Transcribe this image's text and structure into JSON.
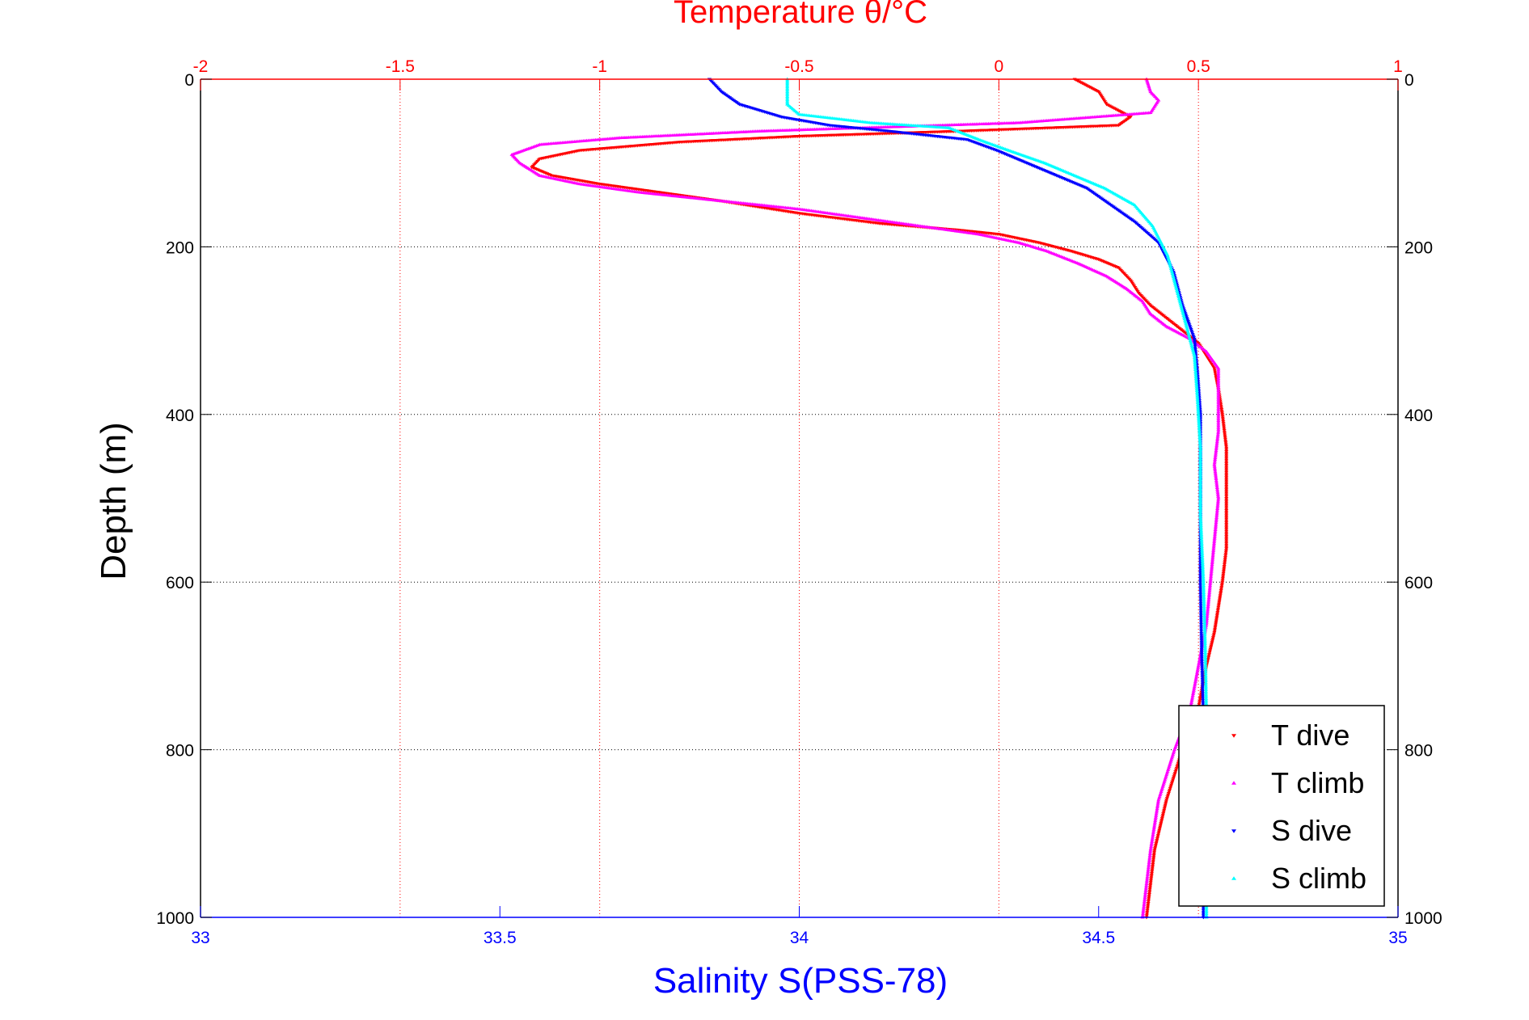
{
  "chart_data": {
    "type": "scatter",
    "title": "Temperature θ/°C",
    "xlabel": "Salinity S(PSS-78)",
    "ylabel": "Depth (m)",
    "x_salinity": {
      "lim": [
        33,
        35
      ],
      "ticks": [
        "33",
        "33.5",
        "34",
        "34.5",
        "35"
      ],
      "values": [
        33,
        33.5,
        34,
        34.5,
        35
      ]
    },
    "x_temperature": {
      "lim": [
        -2,
        1
      ],
      "ticks": [
        "-2",
        "-1.5",
        "-1",
        "-0.5",
        "0",
        "0.5",
        "1"
      ],
      "values": [
        -2,
        -1.5,
        -1,
        -0.5,
        0,
        0.5,
        1
      ]
    },
    "y_depth": {
      "lim": [
        0,
        1000
      ],
      "reversed": true,
      "ticks": [
        "0",
        "200",
        "400",
        "600",
        "800",
        "1000"
      ],
      "values": [
        0,
        200,
        400,
        600,
        800,
        1000
      ]
    },
    "grid": true,
    "legend_placement": "bottom-right",
    "colors": {
      "temperature_axis": "#ff0000",
      "salinity_axis": "#0000ff",
      "t_dive": "#ff0000",
      "t_climb": "#ff00ff",
      "s_dive": "#0000ff",
      "s_climb": "#00ffff"
    },
    "series": [
      {
        "name": "T dive",
        "axis": "temperature",
        "marker": "down-triangle",
        "points": [
          [
            0.19,
            0
          ],
          [
            0.25,
            15
          ],
          [
            0.27,
            30
          ],
          [
            0.33,
            45
          ],
          [
            0.3,
            55
          ],
          [
            -0.1,
            62
          ],
          [
            -0.5,
            68
          ],
          [
            -0.8,
            75
          ],
          [
            -1.05,
            85
          ],
          [
            -1.15,
            95
          ],
          [
            -1.17,
            105
          ],
          [
            -1.12,
            115
          ],
          [
            -1.0,
            125
          ],
          [
            -0.85,
            135
          ],
          [
            -0.7,
            145
          ],
          [
            -0.5,
            160
          ],
          [
            -0.3,
            172
          ],
          [
            -0.1,
            180
          ],
          [
            0.0,
            185
          ],
          [
            0.1,
            195
          ],
          [
            0.18,
            205
          ],
          [
            0.25,
            215
          ],
          [
            0.3,
            225
          ],
          [
            0.33,
            240
          ],
          [
            0.35,
            255
          ],
          [
            0.38,
            270
          ],
          [
            0.42,
            285
          ],
          [
            0.46,
            300
          ],
          [
            0.5,
            315
          ],
          [
            0.52,
            330
          ],
          [
            0.54,
            345
          ],
          [
            0.55,
            370
          ],
          [
            0.56,
            400
          ],
          [
            0.57,
            440
          ],
          [
            0.57,
            500
          ],
          [
            0.57,
            560
          ],
          [
            0.56,
            600
          ],
          [
            0.55,
            630
          ],
          [
            0.54,
            660
          ],
          [
            0.52,
            700
          ],
          [
            0.5,
            750
          ],
          [
            0.46,
            800
          ],
          [
            0.42,
            860
          ],
          [
            0.39,
            920
          ],
          [
            0.37,
            1000
          ]
        ]
      },
      {
        "name": "T climb",
        "axis": "temperature",
        "marker": "up-triangle",
        "points": [
          [
            0.37,
            0
          ],
          [
            0.38,
            15
          ],
          [
            0.4,
            25
          ],
          [
            0.38,
            40
          ],
          [
            0.05,
            52
          ],
          [
            -0.6,
            62
          ],
          [
            -0.95,
            70
          ],
          [
            -1.15,
            78
          ],
          [
            -1.22,
            90
          ],
          [
            -1.2,
            100
          ],
          [
            -1.15,
            115
          ],
          [
            -1.05,
            125
          ],
          [
            -0.9,
            135
          ],
          [
            -0.7,
            145
          ],
          [
            -0.5,
            155
          ],
          [
            -0.35,
            165
          ],
          [
            -0.2,
            175
          ],
          [
            -0.05,
            185
          ],
          [
            0.05,
            195
          ],
          [
            0.12,
            205
          ],
          [
            0.2,
            220
          ],
          [
            0.27,
            235
          ],
          [
            0.32,
            250
          ],
          [
            0.36,
            265
          ],
          [
            0.38,
            280
          ],
          [
            0.42,
            295
          ],
          [
            0.48,
            310
          ],
          [
            0.52,
            325
          ],
          [
            0.55,
            345
          ],
          [
            0.55,
            380
          ],
          [
            0.55,
            420
          ],
          [
            0.54,
            460
          ],
          [
            0.55,
            500
          ],
          [
            0.54,
            550
          ],
          [
            0.53,
            600
          ],
          [
            0.52,
            650
          ],
          [
            0.5,
            700
          ],
          [
            0.48,
            750
          ],
          [
            0.44,
            800
          ],
          [
            0.4,
            860
          ],
          [
            0.38,
            920
          ],
          [
            0.36,
            1000
          ]
        ]
      },
      {
        "name": "S dive",
        "axis": "salinity",
        "marker": "down-triangle",
        "points": [
          [
            33.85,
            0
          ],
          [
            33.87,
            15
          ],
          [
            33.9,
            30
          ],
          [
            33.97,
            45
          ],
          [
            34.05,
            55
          ],
          [
            34.15,
            62
          ],
          [
            34.28,
            72
          ],
          [
            34.33,
            85
          ],
          [
            34.38,
            100
          ],
          [
            34.43,
            115
          ],
          [
            34.48,
            130
          ],
          [
            34.52,
            150
          ],
          [
            34.56,
            170
          ],
          [
            34.6,
            195
          ],
          [
            34.625,
            230
          ],
          [
            34.64,
            270
          ],
          [
            34.66,
            310
          ],
          [
            34.665,
            350
          ],
          [
            34.67,
            400
          ],
          [
            34.67,
            460
          ],
          [
            34.67,
            530
          ],
          [
            34.67,
            600
          ],
          [
            34.672,
            680
          ],
          [
            34.675,
            760
          ],
          [
            34.675,
            850
          ],
          [
            34.675,
            930
          ],
          [
            34.675,
            1000
          ]
        ]
      },
      {
        "name": "S climb",
        "axis": "salinity",
        "marker": "up-triangle",
        "points": [
          [
            33.98,
            0
          ],
          [
            33.98,
            15
          ],
          [
            33.98,
            30
          ],
          [
            34.0,
            42
          ],
          [
            34.12,
            52
          ],
          [
            34.25,
            58
          ],
          [
            34.3,
            72
          ],
          [
            34.35,
            85
          ],
          [
            34.41,
            100
          ],
          [
            34.46,
            115
          ],
          [
            34.51,
            130
          ],
          [
            34.56,
            150
          ],
          [
            34.59,
            175
          ],
          [
            34.615,
            210
          ],
          [
            34.63,
            250
          ],
          [
            34.645,
            290
          ],
          [
            34.66,
            330
          ],
          [
            34.665,
            380
          ],
          [
            34.67,
            440
          ],
          [
            34.67,
            520
          ],
          [
            34.675,
            600
          ],
          [
            34.678,
            680
          ],
          [
            34.68,
            760
          ],
          [
            34.68,
            850
          ],
          [
            34.68,
            930
          ],
          [
            34.68,
            1000
          ]
        ]
      }
    ]
  }
}
